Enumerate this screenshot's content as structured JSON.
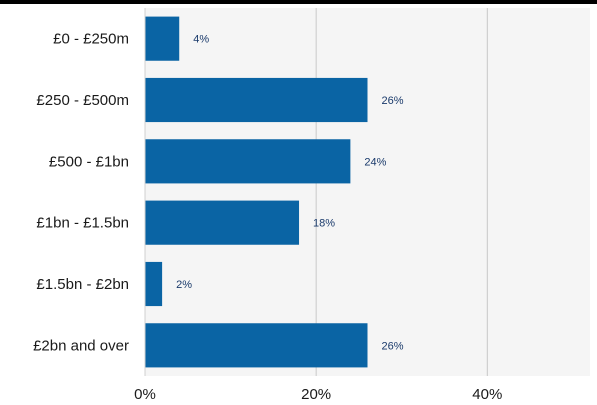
{
  "chart_data": {
    "type": "bar",
    "orientation": "horizontal",
    "categories": [
      "£0 - £250m",
      "£250 - £500m",
      "£500 - £1bn",
      "£1bn - £1.5bn",
      "£1.5bn - £2bn",
      "£2bn and over"
    ],
    "values": [
      4,
      26,
      24,
      18,
      2,
      26
    ],
    "data_labels": [
      "4%",
      "26%",
      "24%",
      "18%",
      "2%",
      "26%"
    ],
    "x_ticks": [
      0,
      20,
      40
    ],
    "x_tick_labels": [
      "0%",
      "20%",
      "40%"
    ],
    "xlim": [
      0,
      52
    ],
    "grid": true,
    "title": "",
    "xlabel": "",
    "ylabel": "",
    "colors": {
      "bar": "#0a64a4",
      "plot_background": "#f5f5f5",
      "grid": "#c8c8c8"
    }
  }
}
